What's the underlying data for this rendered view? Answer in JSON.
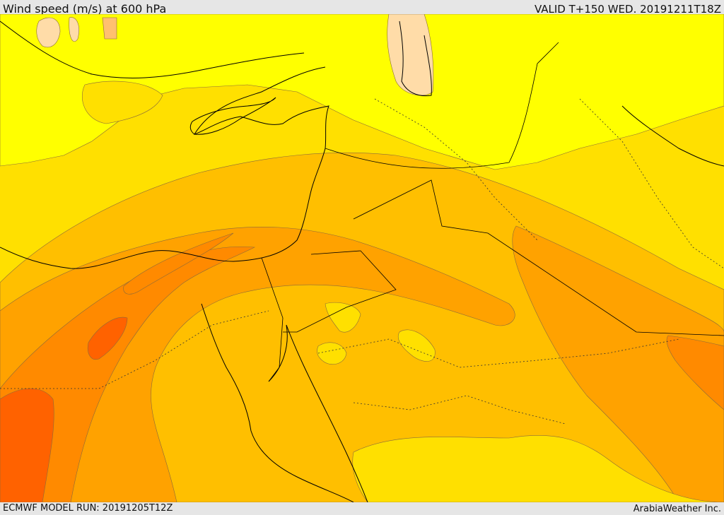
{
  "header": {
    "title": "Wind speed (m/s) at 600 hPa",
    "valid": "VALID T+150 WED. 20191211T18Z"
  },
  "footer": {
    "model_run": "ECMWF MODEL RUN: 20191205T12Z",
    "credit": "ArabiaWeather Inc."
  },
  "colors": {
    "band_lightest": "#ffff00",
    "band_light": "#ffe000",
    "band_mid": "#ffbf00",
    "band_strong": "#ffa200",
    "band_stronger": "#ff8a00",
    "band_strongest": "#ff6200",
    "band_low": "#ffdca8"
  }
}
